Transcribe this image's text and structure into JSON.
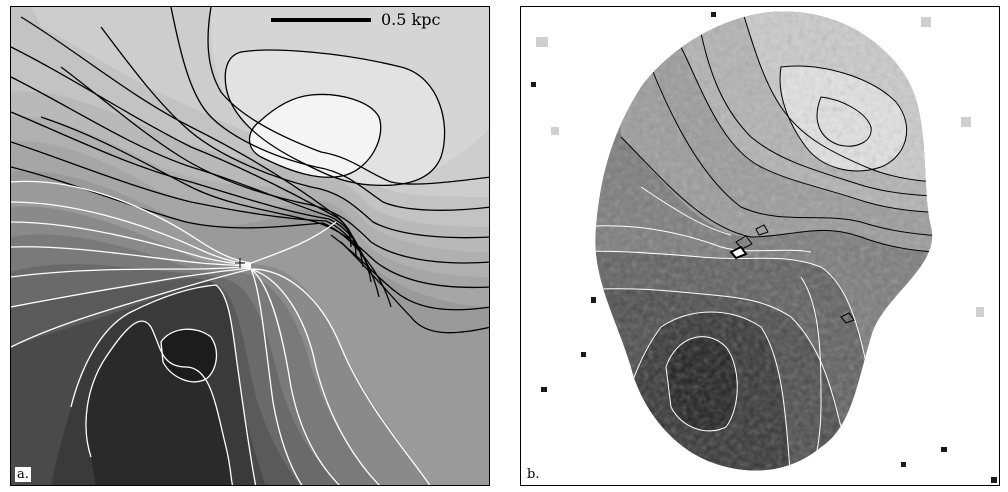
{
  "panels": {
    "a": {
      "label": "a.",
      "scalebar_text": "0.5 kpc"
    },
    "b": {
      "label": "b."
    }
  },
  "colors": {
    "darkest": "#1c1c1c",
    "lightest": "#f4f4f4",
    "contour_dark": "#000000",
    "contour_light": "#ffffff"
  }
}
